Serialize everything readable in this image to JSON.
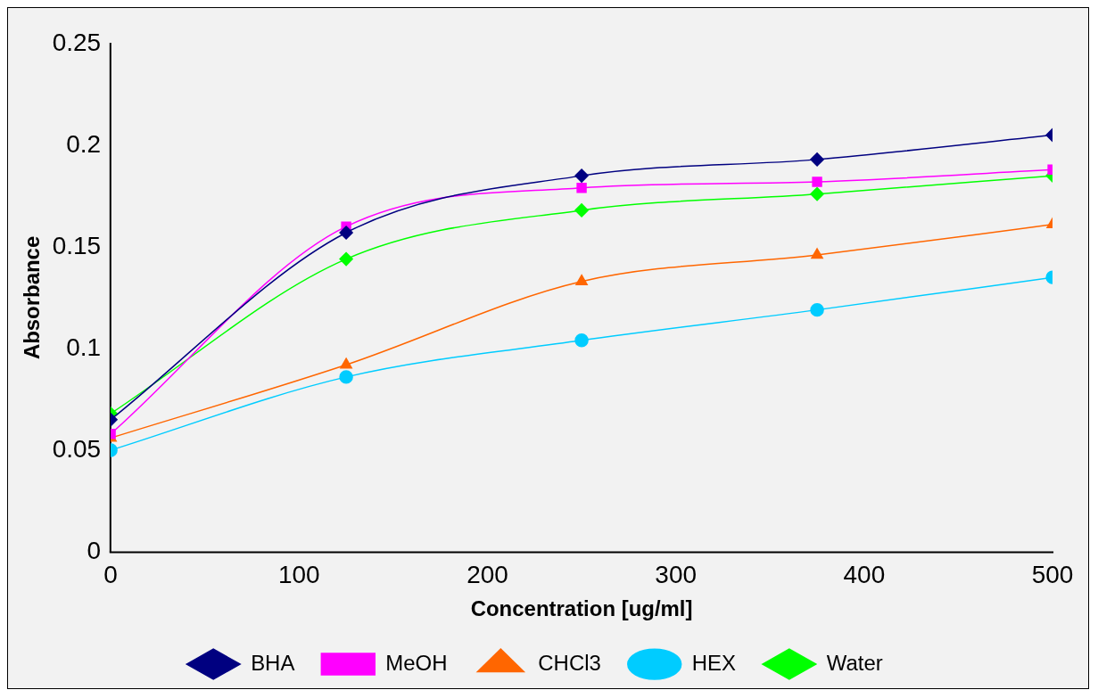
{
  "chart_data": {
    "type": "line",
    "xlabel": "Concentration [ug/ml]",
    "ylabel": "Absorbance",
    "x": [
      0,
      125,
      250,
      375,
      500
    ],
    "series": [
      {
        "name": "BHA",
        "color": "#000080",
        "marker": "diamond",
        "values": [
          0.065,
          0.157,
          0.185,
          0.193,
          0.205
        ]
      },
      {
        "name": "MeOH",
        "color": "#ff00ff",
        "marker": "square",
        "values": [
          0.058,
          0.16,
          0.179,
          0.182,
          0.188
        ]
      },
      {
        "name": "CHCl3",
        "color": "#ff6600",
        "marker": "triangle",
        "values": [
          0.056,
          0.092,
          0.133,
          0.146,
          0.161
        ]
      },
      {
        "name": "HEX",
        "color": "#00ccff",
        "marker": "circle",
        "values": [
          0.05,
          0.086,
          0.104,
          0.119,
          0.135
        ]
      },
      {
        "name": "Water",
        "color": "#00ff00",
        "marker": "diamond",
        "values": [
          0.068,
          0.144,
          0.168,
          0.176,
          0.185
        ]
      }
    ],
    "xlim": [
      0,
      500
    ],
    "xticks": [
      0,
      100,
      200,
      300,
      400,
      500
    ],
    "ylim": [
      0,
      0.25
    ],
    "yticks": [
      0,
      0.05,
      0.1,
      0.15,
      0.2,
      0.25
    ],
    "grid": false,
    "legend": "bottom"
  }
}
